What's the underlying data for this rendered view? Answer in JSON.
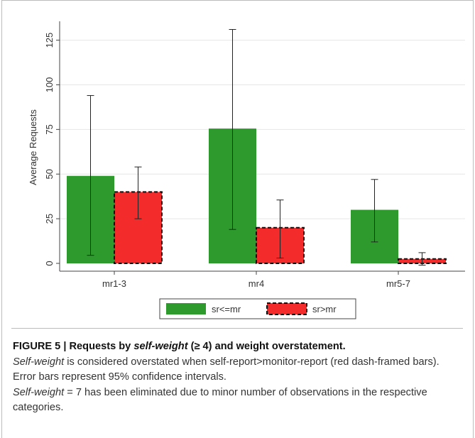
{
  "chart_data": {
    "type": "bar",
    "categories": [
      "mr1-3",
      "mr4",
      "mr5-7"
    ],
    "ylabel": "Average Requests",
    "xlabel": "",
    "ylim": [
      0,
      130
    ],
    "yticks": [
      0,
      25,
      50,
      75,
      100,
      125
    ],
    "grid": true,
    "legend_position": "bottom",
    "series": [
      {
        "name": "sr<=mr",
        "values": [
          49,
          75.5,
          30
        ],
        "ci_low": [
          4.5,
          19,
          12
        ],
        "ci_high": [
          94,
          131,
          47
        ],
        "color": "#2e9a2e",
        "style": "solid"
      },
      {
        "name": "sr>mr",
        "values": [
          40,
          20,
          2.5
        ],
        "ci_low": [
          25,
          3,
          -1
        ],
        "ci_high": [
          54,
          35.5,
          6
        ],
        "color": "#f42b2b",
        "style": "dashed-frame"
      }
    ]
  },
  "caption": {
    "figure_label": "FIGURE 5 | Requests by ",
    "title_italic": "self-weight",
    "title_rest": " (≥ 4) and weight overstatement.",
    "line1_italic": "Self-weight",
    "line1_rest": " is considered overstated when self-report>monitor-report (red dash-framed bars). Error bars represent 95% confidence intervals.",
    "line2_italic": "Self-weight",
    "line2_rest": " = 7 has been eliminated due to minor number of observations in the respective categories."
  }
}
